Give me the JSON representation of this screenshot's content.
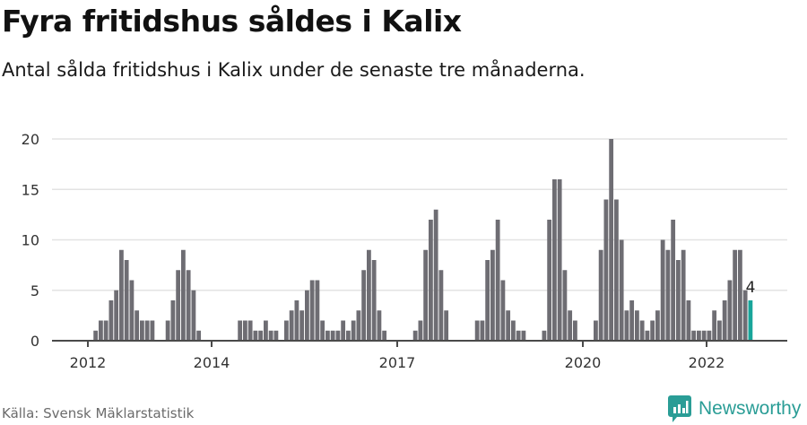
{
  "header": {
    "title": "Fyra fritidshus såldes i Kalix",
    "subtitle": "Antal sålda fritidshus i Kalix under de senaste tre månaderna."
  },
  "footer": {
    "source": "Källa: Svensk Mäklarstatistik",
    "brand": "Newsworthy",
    "brand_icon": "newsworthy-logo-icon"
  },
  "colors": {
    "bar": "#6e6d73",
    "highlight": "#18a59a",
    "grid": "#e3e3e3",
    "axis": "#4a4a4a",
    "brand": "#2a9d96"
  },
  "chart_data": {
    "type": "bar",
    "title": "Fyra fritidshus såldes i Kalix",
    "subtitle": "Antal sålda fritidshus i Kalix under de senaste tre månaderna.",
    "xlabel": "",
    "ylabel": "",
    "ylim": [
      0,
      20
    ],
    "yticks": [
      0,
      5,
      10,
      15,
      20
    ],
    "xtick_labels": [
      "2012",
      "2014",
      "2017",
      "2020",
      "2022"
    ],
    "xtick_month_index": [
      0,
      24,
      60,
      96,
      120
    ],
    "grid": true,
    "legend": null,
    "start_month": "2012-01",
    "end_month": "2022-09",
    "highlight_index": 128,
    "annotation": {
      "label": "4",
      "index": 128
    },
    "values": [
      0,
      1,
      2,
      2,
      4,
      5,
      9,
      8,
      6,
      3,
      2,
      2,
      2,
      0,
      0,
      2,
      4,
      7,
      9,
      7,
      5,
      1,
      0,
      0,
      0,
      0,
      0,
      0,
      0,
      2,
      2,
      2,
      1,
      1,
      2,
      1,
      1,
      0,
      2,
      3,
      4,
      3,
      5,
      6,
      6,
      2,
      1,
      1,
      1,
      2,
      1,
      2,
      3,
      7,
      9,
      8,
      3,
      1,
      0,
      0,
      0,
      0,
      0,
      1,
      2,
      9,
      12,
      13,
      7,
      3,
      0,
      0,
      0,
      0,
      0,
      2,
      2,
      8,
      9,
      12,
      6,
      3,
      2,
      1,
      1,
      0,
      0,
      0,
      1,
      12,
      16,
      16,
      7,
      3,
      2,
      0,
      0,
      0,
      2,
      9,
      14,
      20,
      14,
      10,
      3,
      4,
      3,
      2,
      1,
      2,
      3,
      10,
      9,
      12,
      8,
      9,
      4,
      1,
      1,
      1,
      1,
      3,
      2,
      4,
      6,
      9,
      9,
      5,
      4
    ]
  }
}
